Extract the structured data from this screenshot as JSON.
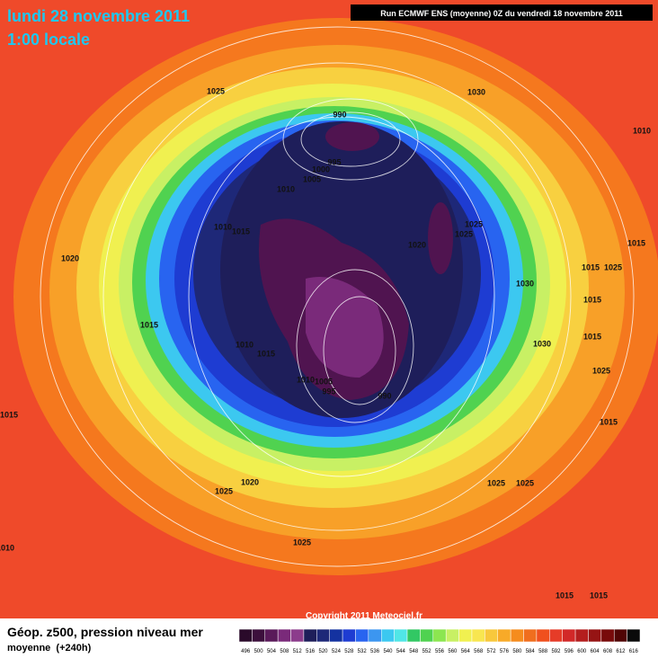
{
  "header": {
    "date": "lundi 28 novembre 2011",
    "time": "1:00 locale",
    "run": "Run ECMWF ENS (moyenne) 0Z du vendredi 18 novembre 2011"
  },
  "map": {
    "isobar_labels": [
      "1025",
      "1030",
      "990",
      "1010",
      "995",
      "1000",
      "1005",
      "1010",
      "1010",
      "1015",
      "1025",
      "1025",
      "1020",
      "1020",
      "1015",
      "1015",
      "1025",
      "1030",
      "1015",
      "1015",
      "1010",
      "1015",
      "1030",
      "1015",
      "1025",
      "1010",
      "1005",
      "995",
      "990",
      "1015",
      "1015",
      "1020",
      "1025",
      "1025",
      "1025",
      "1025",
      "1010",
      "1015",
      "1015"
    ],
    "copyright": "Copyright 2011 Meteociel.fr"
  },
  "footer": {
    "title": "Géop. z500, pression niveau mer",
    "subtitle": "moyenne  (+240h)",
    "scale": [
      {
        "label": "496",
        "color": "#2a0a2a"
      },
      {
        "label": "500",
        "color": "#3c0f3c"
      },
      {
        "label": "504",
        "color": "#5a1a5a"
      },
      {
        "label": "508",
        "color": "#7a2a7a"
      },
      {
        "label": "512",
        "color": "#8c3c8c"
      },
      {
        "label": "516",
        "color": "#1e1e5a"
      },
      {
        "label": "520",
        "color": "#1e2878"
      },
      {
        "label": "524",
        "color": "#1432a0"
      },
      {
        "label": "528",
        "color": "#1e3cd2"
      },
      {
        "label": "532",
        "color": "#2864f0"
      },
      {
        "label": "536",
        "color": "#3c96f0"
      },
      {
        "label": "540",
        "color": "#3cc8f0"
      },
      {
        "label": "544",
        "color": "#50e6e6"
      },
      {
        "label": "548",
        "color": "#32c864"
      },
      {
        "label": "552",
        "color": "#50d250"
      },
      {
        "label": "556",
        "color": "#8ce650"
      },
      {
        "label": "560",
        "color": "#c8f064"
      },
      {
        "label": "564",
        "color": "#f0f050"
      },
      {
        "label": "568",
        "color": "#f8e650"
      },
      {
        "label": "572",
        "color": "#f8c83c"
      },
      {
        "label": "576",
        "color": "#f8aa28"
      },
      {
        "label": "580",
        "color": "#f58c1e"
      },
      {
        "label": "584",
        "color": "#f06e1e"
      },
      {
        "label": "588",
        "color": "#f0501e"
      },
      {
        "label": "592",
        "color": "#e63c28"
      },
      {
        "label": "596",
        "color": "#d22828"
      },
      {
        "label": "600",
        "color": "#b41e1e"
      },
      {
        "label": "604",
        "color": "#961414"
      },
      {
        "label": "608",
        "color": "#780a0a"
      },
      {
        "label": "612",
        "color": "#500505"
      },
      {
        "label": "616",
        "color": "#0a0a0a"
      }
    ]
  }
}
